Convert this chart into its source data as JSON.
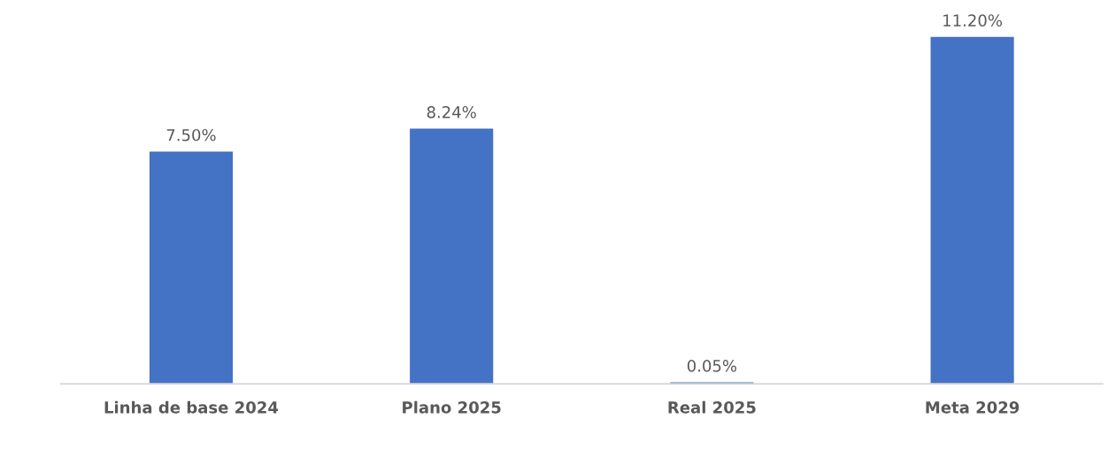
{
  "chart_data": {
    "type": "bar",
    "categories": [
      "Linha de base 2024",
      "Plano 2025",
      "Real 2025",
      "Meta 2029"
    ],
    "values": [
      7.5,
      8.24,
      0.05,
      11.2
    ],
    "value_labels": [
      "7.50%",
      "8.24%",
      "0.05%",
      "11.20%"
    ],
    "color": "#4472c4",
    "tick_labels": "x",
    "grid": false,
    "legend": false
  }
}
